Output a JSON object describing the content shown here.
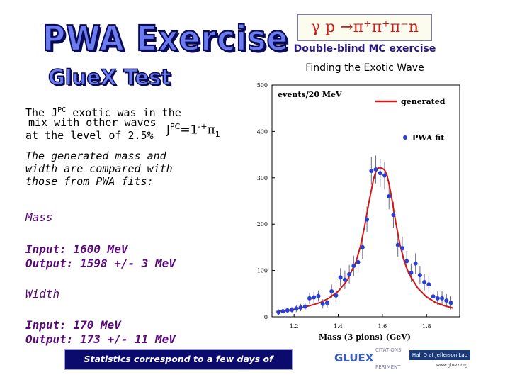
{
  "title": {
    "line1": "PWA Exercise",
    "line2": "GlueX Test"
  },
  "reaction": {
    "text": "γ p →π⁺π⁺π⁻n"
  },
  "subtitles": {
    "line1": "Double-blind MC exercise",
    "line2": "Finding the Exotic Wave"
  },
  "text": {
    "l1": "The J",
    "l1_sup": "PC",
    "l1_tail": " exotic was in the",
    "l2": "mix with other waves",
    "l3": "at the level of 2.5%",
    "jpc_main": "J",
    "jpc_sup": "PC",
    "jpc_val": "=1",
    "jpc_sup2": "-+",
    "jpc_pi": "π",
    "jpc_sub": "1",
    "p1": "The generated mass and",
    "p2": "width are compared with",
    "p3": "those from PWA fits:",
    "mass_header": "Mass",
    "mass_input": "Input:  1600 MeV",
    "mass_output": "Output: 1598 +/- 3 MeV",
    "width_header": "Width",
    "width_input": "Input: 170 MeV",
    "width_output": "Output:  173 +/- 11 MeV"
  },
  "footer": {
    "text": "Statistics correspond to a few days of running"
  },
  "logos": {
    "gluex": "GLUEX",
    "citations": "CITATIONS",
    "periment": "PERIMENT",
    "halld": "Hall D at Jefferson Lab",
    "url": "www.gluex.org"
  },
  "chart_data": {
    "type": "line",
    "ylabel": "events/20 MeV",
    "xlabel": "Mass (3 pions)  (GeV)",
    "xlim": [
      1.1,
      1.95
    ],
    "ylim": [
      0,
      500
    ],
    "xticks": [
      1.2,
      1.4,
      1.6,
      1.8
    ],
    "xtick_labels": [
      "1.2",
      "1.4",
      "1.6",
      "1.8"
    ],
    "yticks": [
      0,
      100,
      200,
      300,
      400,
      500
    ],
    "ytick_labels": [
      "0",
      "100",
      "200",
      "300",
      "400",
      "500"
    ],
    "legend": [
      {
        "name": "generated",
        "style": "line",
        "color": "#d01818"
      },
      {
        "name": "PWA fit",
        "style": "points",
        "color": "#2a3ed0"
      }
    ],
    "series": [
      {
        "name": "generated",
        "mass": 1.6,
        "width": 0.17,
        "peak": 320,
        "baseline": 5,
        "x": [
          1.12,
          1.16,
          1.2,
          1.24,
          1.28,
          1.32,
          1.36,
          1.4,
          1.44,
          1.48,
          1.5,
          1.52,
          1.54,
          1.56,
          1.57,
          1.58,
          1.59,
          1.6,
          1.61,
          1.62,
          1.63,
          1.64,
          1.66,
          1.68,
          1.7,
          1.72,
          1.76,
          1.8,
          1.84,
          1.88,
          1.92
        ],
        "y": [
          11,
          13,
          16,
          20,
          25,
          31,
          41,
          55,
          78,
          118,
          151,
          196,
          250,
          297,
          313,
          321,
          322,
          320,
          317,
          307,
          287,
          262,
          205,
          155,
          118,
          93,
          62,
          43,
          31,
          24,
          19
        ]
      },
      {
        "name": "PWA fit",
        "x": [
          1.13,
          1.15,
          1.17,
          1.19,
          1.21,
          1.23,
          1.25,
          1.27,
          1.29,
          1.31,
          1.33,
          1.35,
          1.37,
          1.39,
          1.41,
          1.43,
          1.45,
          1.47,
          1.49,
          1.51,
          1.53,
          1.55,
          1.57,
          1.59,
          1.61,
          1.63,
          1.65,
          1.67,
          1.69,
          1.71,
          1.73,
          1.75,
          1.77,
          1.79,
          1.81,
          1.83,
          1.85,
          1.87,
          1.89,
          1.91
        ],
        "y": [
          10,
          12,
          14,
          15,
          18,
          20,
          22,
          40,
          42,
          45,
          28,
          30,
          55,
          46,
          85,
          80,
          92,
          110,
          118,
          150,
          210,
          315,
          318,
          310,
          305,
          260,
          220,
          155,
          148,
          120,
          95,
          115,
          90,
          75,
          70,
          44,
          40,
          40,
          35,
          30
        ],
        "err": [
          6,
          6,
          6,
          6,
          8,
          8,
          8,
          12,
          12,
          12,
          10,
          10,
          15,
          14,
          20,
          20,
          20,
          22,
          22,
          25,
          28,
          30,
          30,
          30,
          30,
          28,
          28,
          25,
          25,
          22,
          20,
          22,
          20,
          18,
          18,
          15,
          15,
          15,
          14,
          14
        ]
      }
    ]
  }
}
